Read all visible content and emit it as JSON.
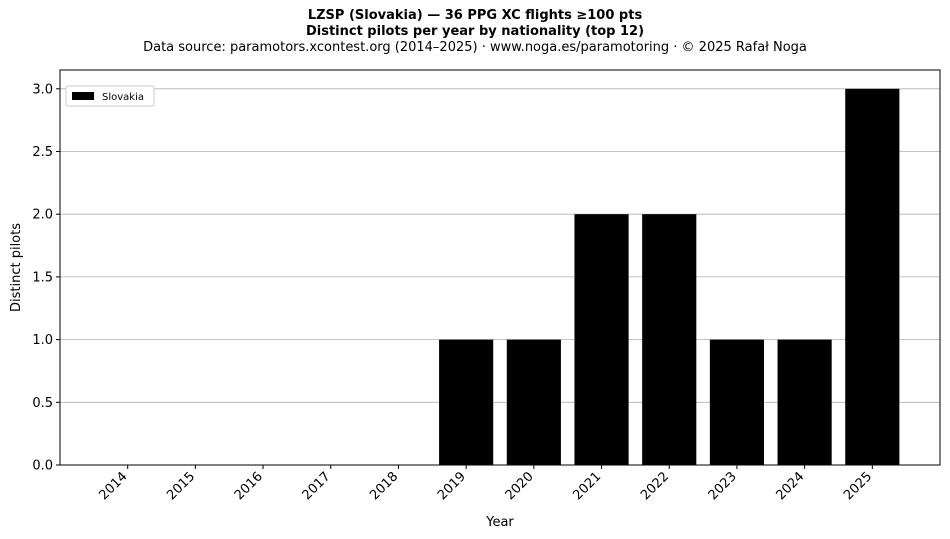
{
  "chart_data": {
    "type": "bar",
    "title_lines": [
      "LZSP (Slovakia)  —  36 PPG XC flights ≥100 pts",
      "Distinct pilots per year by nationality (top 12)"
    ],
    "subtitle": "Data source: paramotors.xcontest.org (2014–2025)  ·  www.noga.es/paramotoring  ·  © 2025 Rafał Noga",
    "xlabel": "Year",
    "ylabel": "Distinct pilots",
    "categories": [
      "2014",
      "2015",
      "2016",
      "2017",
      "2018",
      "2019",
      "2020",
      "2021",
      "2022",
      "2023",
      "2024",
      "2025"
    ],
    "series": [
      {
        "name": "Slovakia",
        "color": "#000000",
        "values": [
          0,
          0,
          0,
          0,
          0,
          1,
          1,
          2,
          2,
          1,
          1,
          3
        ]
      }
    ],
    "ylim": [
      0,
      3.15
    ],
    "yticks": [
      "0.0",
      "0.5",
      "1.0",
      "1.5",
      "2.0",
      "2.5",
      "3.0"
    ],
    "grid": "horizontal",
    "legend_position": "top-left"
  }
}
